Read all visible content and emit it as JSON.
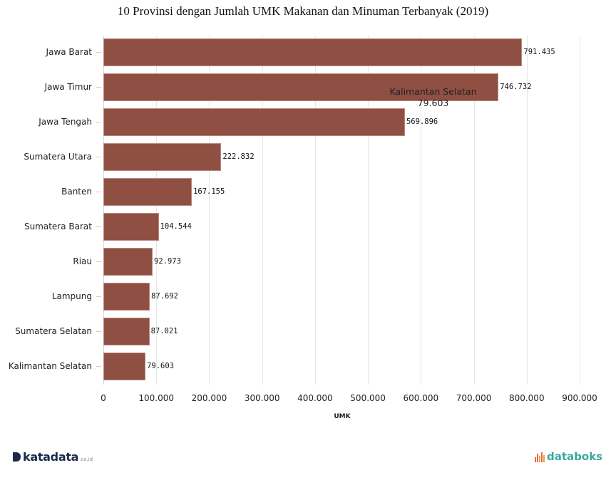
{
  "chart_data": {
    "type": "bar",
    "orientation": "horizontal",
    "title": "10 Provinsi dengan Jumlah UMK Makanan dan Minuman Terbanyak (2019)",
    "xlabel": "UMK",
    "ylabel": "",
    "xlim": [
      0,
      900000
    ],
    "grid": true,
    "legend": null,
    "categories": [
      "Jawa Barat",
      "Jawa Timur",
      "Jawa Tengah",
      "Sumatera Utara",
      "Banten",
      "Sumatera Barat",
      "Riau",
      "Lampung",
      "Sumatera Selatan",
      "Kalimantan Selatan"
    ],
    "values": [
      791435,
      746732,
      569896,
      222832,
      167155,
      104544,
      92973,
      87692,
      87021,
      79603
    ],
    "value_labels": [
      "791.435",
      "746.732",
      "569.896",
      "222.832",
      "167.155",
      "104.544",
      "92.973",
      "87.692",
      "87.021",
      "79.603"
    ],
    "x_ticks": [
      "0",
      "100.000",
      "200.000",
      "300.000",
      "400.000",
      "500.000",
      "600.000",
      "700.000",
      "800.000",
      "900.000"
    ],
    "bar_color": "#8f4f42",
    "annotations": [
      {
        "type": "hover-tooltip",
        "label": "Kalimantan Selatan",
        "value": "79.603"
      }
    ]
  },
  "tooltip": {
    "label": "Kalimantan Selatan",
    "value": "79.603"
  },
  "footer": {
    "left_logo": {
      "brand": "katadata",
      "tld": ".co.id"
    },
    "right_logo": {
      "brand": "databoks"
    }
  }
}
